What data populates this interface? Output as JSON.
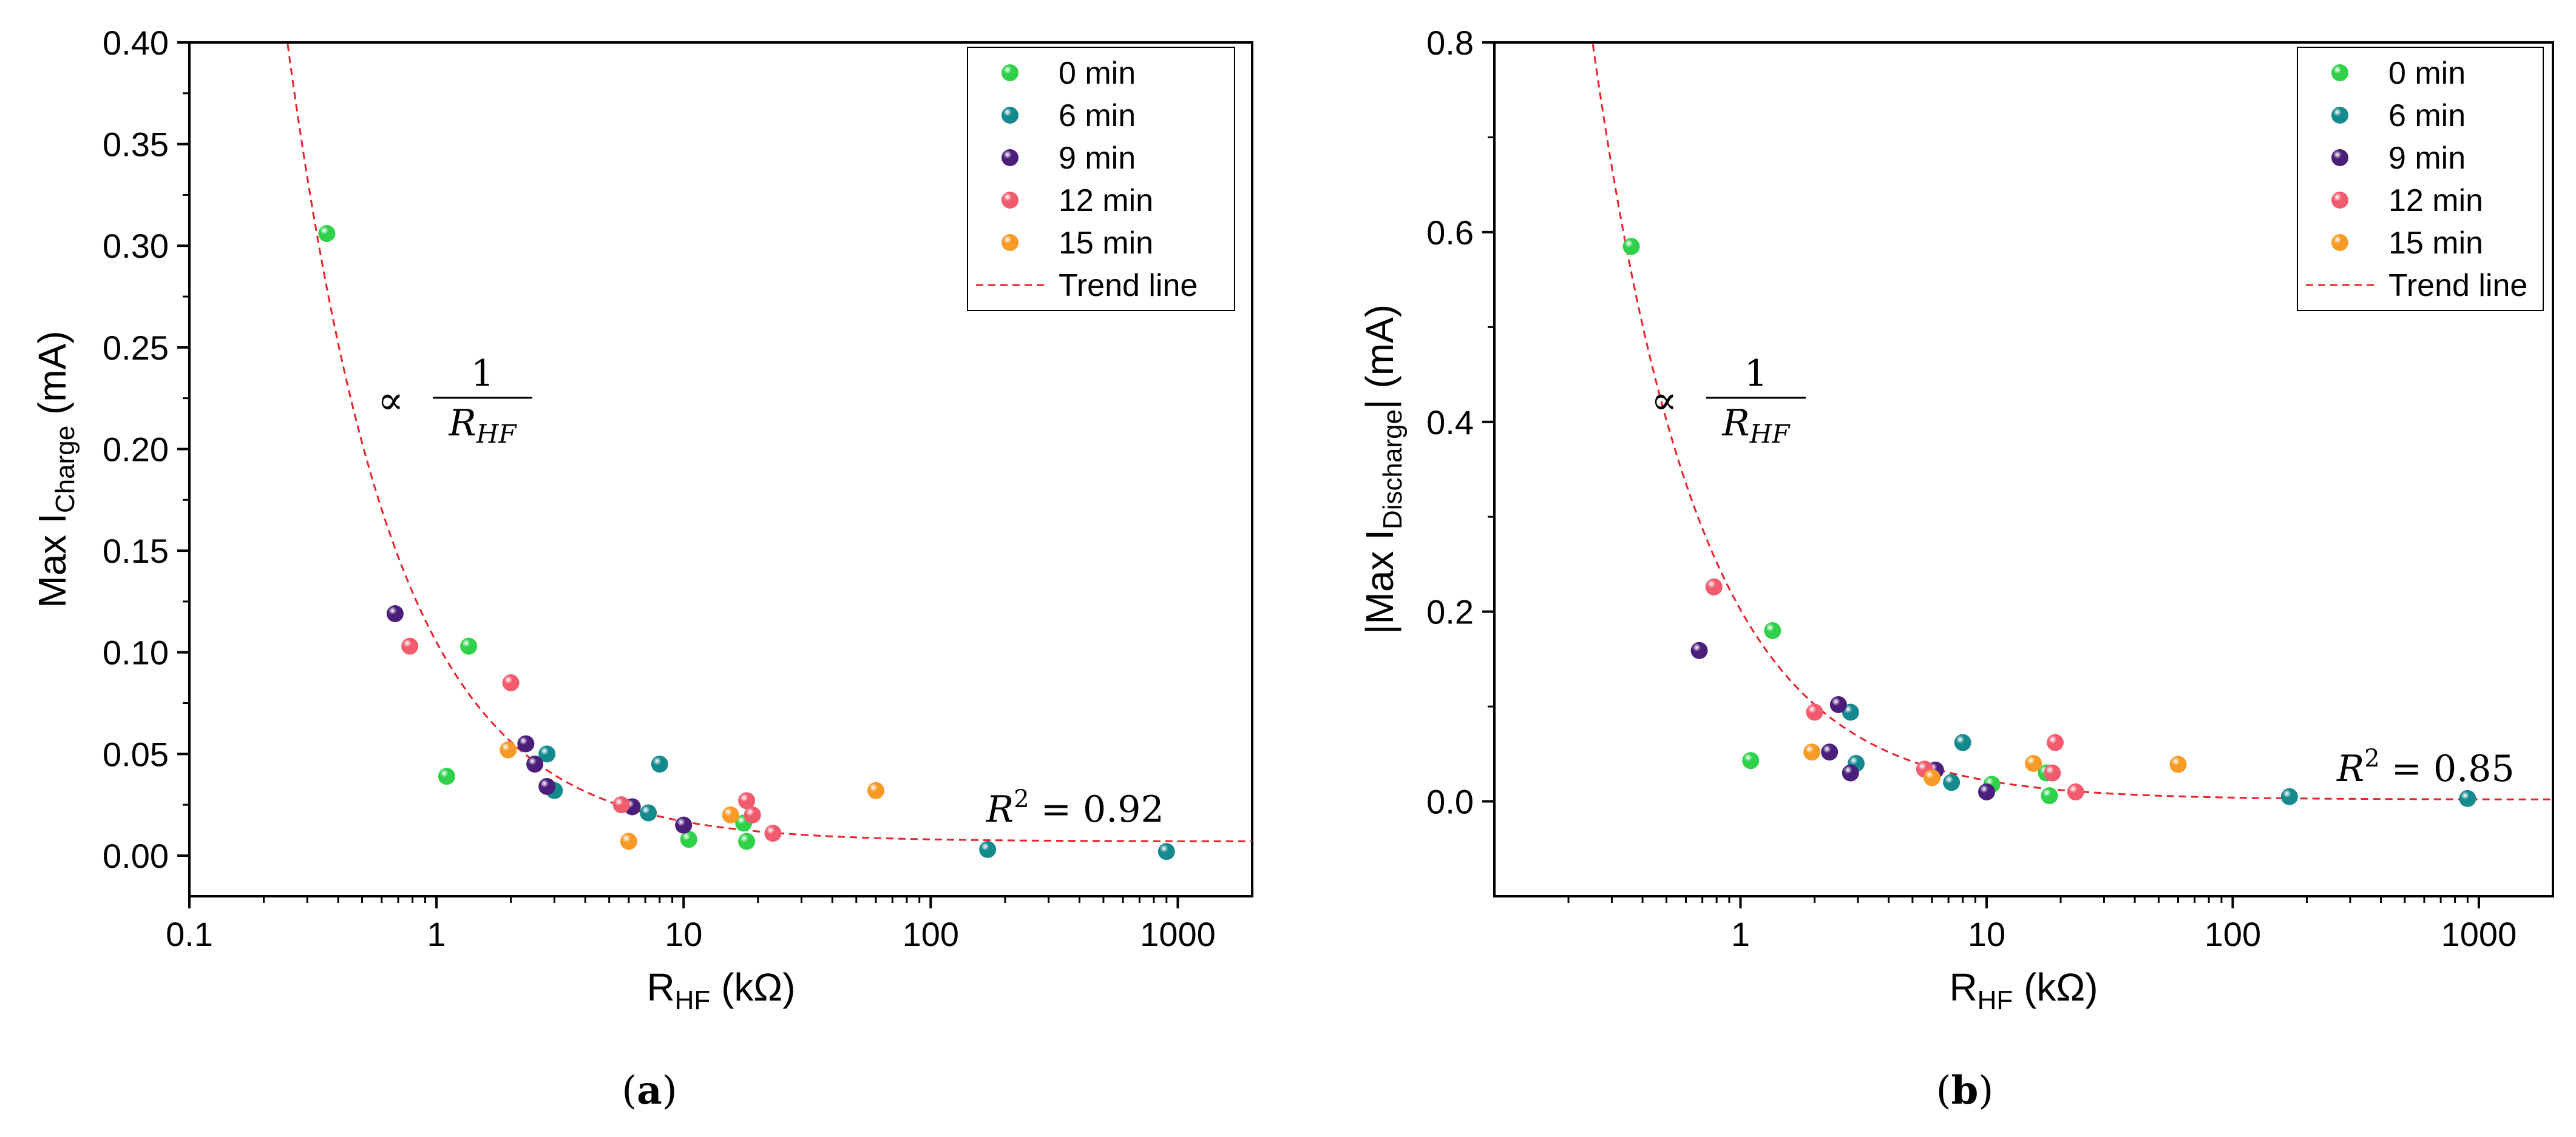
{
  "chart_data": [
    {
      "type": "scatter",
      "panel_label": "a",
      "xlabel": "R",
      "xlabel_sub": "HF",
      "xlabel_unit": " (kΩ)",
      "ylabel": "Max I",
      "ylabel_sub": "Charge",
      "ylabel_unit": " (mA)",
      "xscale": "log",
      "xlim": [
        0.1,
        2000
      ],
      "ylim": [
        -0.02,
        0.4
      ],
      "xticks": [
        0.1,
        1,
        10,
        100,
        1000
      ],
      "xtick_labels": [
        "0.1",
        "1",
        "10",
        "100",
        "1000"
      ],
      "yticks": [
        0.0,
        0.05,
        0.1,
        0.15,
        0.2,
        0.25,
        0.3,
        0.35,
        0.4
      ],
      "ytick_labels": [
        "0.00",
        "0.05",
        "0.10",
        "0.15",
        "0.20",
        "0.25",
        "0.30",
        "0.35",
        "0.40"
      ],
      "legend_position": "top-right",
      "trend": {
        "label": "Trend line",
        "k": 0.098,
        "c": 0.007,
        "color": "#e8232a"
      },
      "annotation_prop": "∝",
      "annotation_num": "1",
      "annotation_den": "R",
      "annotation_den_sub": "HF",
      "r2_text": "R",
      "r2_sup": "2",
      "r2_value": " = 0.92",
      "series": [
        {
          "name": "0 min",
          "color": "#2fd14a",
          "x": [
            0.36,
            1.1,
            1.35,
            10.5,
            17.5,
            18
          ],
          "y": [
            0.306,
            0.039,
            0.103,
            0.008,
            0.016,
            0.007
          ]
        },
        {
          "name": "6 min",
          "color": "#158a8e",
          "x": [
            2.8,
            3.0,
            7.2,
            8.0,
            170,
            900
          ],
          "y": [
            0.05,
            0.032,
            0.021,
            0.045,
            0.003,
            0.002
          ]
        },
        {
          "name": "9 min",
          "color": "#4a1e7a",
          "x": [
            0.68,
            2.3,
            2.5,
            2.8,
            6.2,
            10
          ],
          "y": [
            0.119,
            0.055,
            0.045,
            0.034,
            0.024,
            0.015
          ]
        },
        {
          "name": "12 min",
          "color": "#f25a6e",
          "x": [
            0.78,
            2.0,
            5.6,
            18,
            19,
            23
          ],
          "y": [
            0.103,
            0.085,
            0.025,
            0.027,
            0.02,
            0.011
          ]
        },
        {
          "name": "15 min",
          "color": "#f79a26",
          "x": [
            1.95,
            6.0,
            15.5,
            60
          ],
          "y": [
            0.052,
            0.007,
            0.02,
            0.032
          ]
        }
      ]
    },
    {
      "type": "scatter",
      "panel_label": "b",
      "xlabel": "R",
      "xlabel_sub": "HF",
      "xlabel_unit": " (kΩ)",
      "ylabel": "|Max I",
      "ylabel_sub": "Discharge",
      "ylabel_unit": "| (mA)",
      "xscale": "log",
      "xlim": [
        0.1,
        2000
      ],
      "ylim": [
        -0.1,
        0.8
      ],
      "xticks": [
        1,
        10,
        100,
        1000
      ],
      "xtick_labels": [
        "1",
        "10",
        "100",
        "1000"
      ],
      "yticks": [
        0.0,
        0.2,
        0.4,
        0.6,
        0.8
      ],
      "ytick_labels": [
        "0.0",
        "0.2",
        "0.4",
        "0.6",
        "0.8"
      ],
      "legend_position": "top-right",
      "trend": {
        "label": "Trend line",
        "k": 0.2,
        "c": 0.002,
        "color": "#e8232a"
      },
      "annotation_prop": "∝",
      "annotation_num": "1",
      "annotation_den": "R",
      "annotation_den_sub": "HF",
      "r2_text": "R",
      "r2_sup": "2",
      "r2_value": " = 0.85",
      "series": [
        {
          "name": "0 min",
          "color": "#2fd14a",
          "x": [
            0.36,
            1.1,
            1.35,
            10.5,
            17.5,
            18
          ],
          "y": [
            0.585,
            0.043,
            0.18,
            0.018,
            0.03,
            0.006
          ]
        },
        {
          "name": "6 min",
          "color": "#158a8e",
          "x": [
            2.8,
            2.95,
            7.2,
            8.0,
            170,
            900
          ],
          "y": [
            0.094,
            0.04,
            0.02,
            0.062,
            0.005,
            0.003
          ]
        },
        {
          "name": "9 min",
          "color": "#4a1e7a",
          "x": [
            0.68,
            2.3,
            2.5,
            2.8,
            6.2,
            10
          ],
          "y": [
            0.159,
            0.052,
            0.102,
            0.03,
            0.033,
            0.01
          ]
        },
        {
          "name": "12 min",
          "color": "#f25a6e",
          "x": [
            0.78,
            2.0,
            5.6,
            18.5,
            19,
            23
          ],
          "y": [
            0.226,
            0.094,
            0.034,
            0.03,
            0.062,
            0.01
          ]
        },
        {
          "name": "15 min",
          "color": "#f79a26",
          "x": [
            1.95,
            6.0,
            15.5,
            60
          ],
          "y": [
            0.052,
            0.025,
            0.04,
            0.039
          ]
        }
      ]
    }
  ]
}
